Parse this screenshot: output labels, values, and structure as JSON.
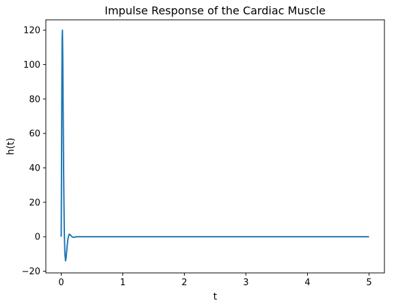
{
  "chart_data": {
    "type": "line",
    "title": "Impulse Response of the Cardiac Muscle",
    "xlabel": "t",
    "ylabel": "h(t)",
    "xlim": [
      -0.25,
      5.25
    ],
    "ylim": [
      -21,
      126
    ],
    "xticks": [
      0,
      1,
      2,
      3,
      4,
      5
    ],
    "yticks": [
      -20,
      0,
      20,
      40,
      60,
      80,
      100,
      120
    ],
    "grid": false,
    "colors": {
      "line": "#1f77b4"
    },
    "series": [
      {
        "x": [
          0,
          0.005,
          0.01,
          0.015,
          0.02,
          0.025,
          0.03,
          0.04,
          0.05,
          0.06,
          0.07,
          0.08,
          0.09,
          0.1,
          0.11,
          0.13,
          0.15,
          0.17,
          0.19,
          0.21,
          0.23,
          0.25,
          0.3,
          0.35,
          0.4,
          0.5,
          1,
          2,
          3,
          4,
          5
        ],
        "y": [
          0,
          40,
          85,
          115,
          120,
          105,
          80,
          35,
          3,
          -10,
          -14,
          -12,
          -8,
          -4,
          -1,
          1.5,
          1.0,
          0.2,
          -0.3,
          -0.3,
          -0.1,
          0,
          0,
          0,
          0,
          0,
          0,
          0,
          0,
          0,
          0
        ]
      }
    ]
  }
}
